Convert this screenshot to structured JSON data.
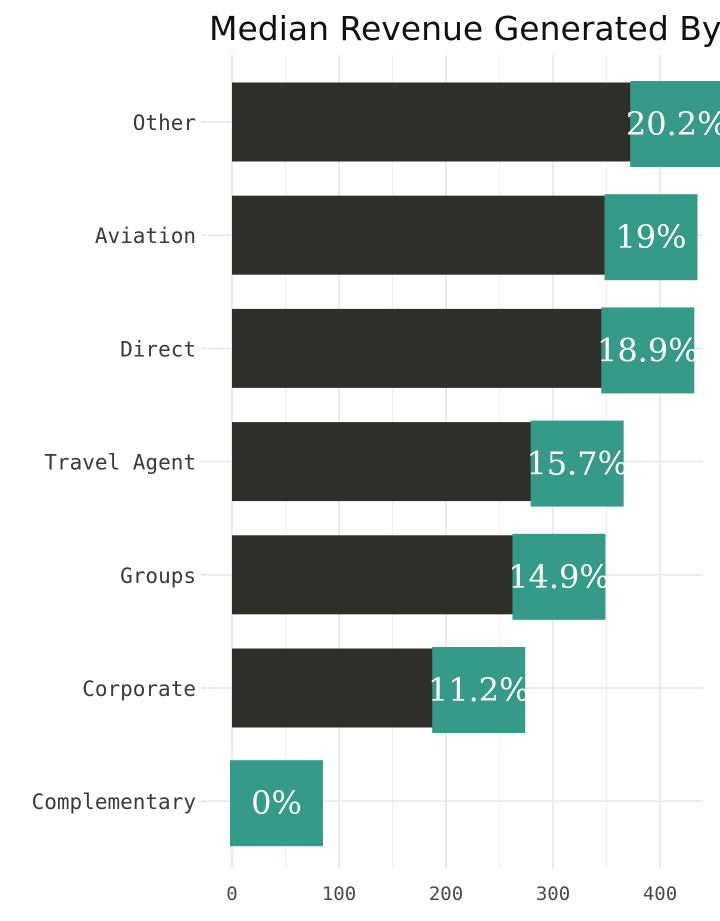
{
  "chart_data": {
    "type": "bar",
    "orientation": "horizontal",
    "title": "Median Revenue Generated By",
    "xlabel": "",
    "ylabel": "",
    "categories": [
      "Other",
      "Aviation",
      "Direct",
      "Travel Agent",
      "Groups",
      "Corporate",
      "Complementary"
    ],
    "values": [
      374,
      350,
      347,
      281,
      264,
      189,
      0
    ],
    "data_labels": [
      "20.2%",
      "19%",
      "18.9%",
      "15.7%",
      "14.9%",
      "11.2%",
      "0%"
    ],
    "xlim": [
      -22,
      440
    ],
    "x_ticks": [
      0,
      100,
      200,
      300,
      400
    ],
    "grid": true,
    "legend": "none",
    "colors": {
      "bar": "#2e2e2a",
      "label_bg": "#359a87",
      "label_text": "#ffffff",
      "grid": "#e6e6e6"
    }
  }
}
